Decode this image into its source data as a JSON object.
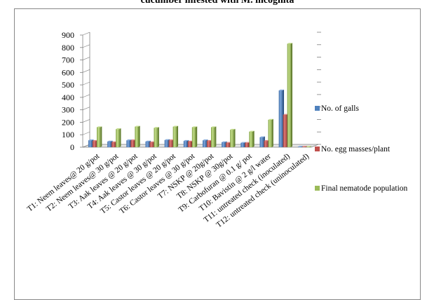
{
  "chart_data": {
    "type": "bar",
    "title_visible_fragment": "cucumber infested with M. incognita",
    "categories": [
      "T1: Neem leaves@ 20 g/pot",
      "T2: Neem leaves@ 30 g/pot",
      "T3: Aak leaves @ 20 g/pot",
      "T4: Aak leaves @ 30 g/pot",
      "T5: Castor leaves @ 20 g/pot",
      "T6: Castor leaves @ 30 g/pot",
      "T7: NSKP @ 20g/pot",
      "T8: NSKP @ 30g/pot",
      "T9: Carbofuran @ 0.1 g/ pot",
      "T10: Bavistin @ 2 g/l water",
      "T11: untreated check (inoculated)",
      "T12: untreated check (uninoculated)"
    ],
    "series": [
      {
        "name": "No. of galls",
        "color": "#4f81bd",
        "values": [
          55,
          45,
          55,
          45,
          57,
          50,
          55,
          40,
          35,
          80,
          455,
          0
        ]
      },
      {
        "name": "No. egg masses/plant",
        "color": "#c0504d",
        "values": [
          50,
          40,
          55,
          40,
          55,
          45,
          50,
          35,
          35,
          50,
          260,
          0
        ]
      },
      {
        "name": "Final nematode population",
        "color": "#9bbb59",
        "values": [
          160,
          145,
          165,
          155,
          165,
          160,
          160,
          140,
          125,
          220,
          830,
          0
        ]
      }
    ],
    "y_ticks": [
      "0",
      "100",
      "200",
      "300",
      "400",
      "500",
      "600",
      "700",
      "800",
      "900"
    ],
    "ylim": [
      0,
      900
    ],
    "grid": false,
    "legend_position": "right"
  }
}
